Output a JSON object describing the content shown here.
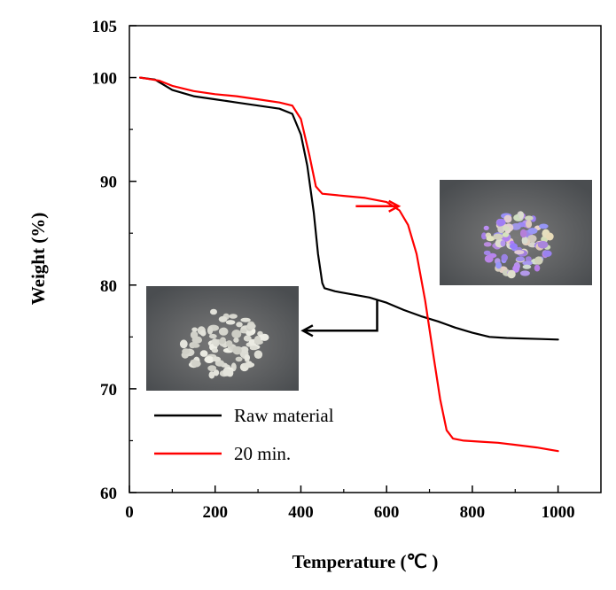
{
  "chart_data": {
    "type": "line",
    "xlabel": "Temperature (℃ )",
    "ylabel": "Weight (%)",
    "xlim": [
      0,
      1100
    ],
    "ylim": [
      60,
      105
    ],
    "xticks": [
      0,
      200,
      400,
      600,
      800,
      1000
    ],
    "yticks": [
      60,
      70,
      80,
      90,
      100,
      105
    ],
    "x_minor_ticks": [
      100,
      300,
      500,
      700,
      900
    ],
    "y_minor_ticks": [
      65,
      75,
      85,
      95
    ],
    "grid": false,
    "legend_position": "bottom-left",
    "series": [
      {
        "name": "Raw material",
        "color": "#000000",
        "points": [
          [
            25,
            100
          ],
          [
            60,
            99.8
          ],
          [
            100,
            98.8
          ],
          [
            150,
            98.2
          ],
          [
            200,
            97.9
          ],
          [
            250,
            97.6
          ],
          [
            300,
            97.3
          ],
          [
            350,
            97.0
          ],
          [
            380,
            96.5
          ],
          [
            400,
            94.5
          ],
          [
            415,
            91.5
          ],
          [
            430,
            87
          ],
          [
            440,
            83
          ],
          [
            450,
            80.2
          ],
          [
            455,
            79.7
          ],
          [
            480,
            79.4
          ],
          [
            520,
            79.1
          ],
          [
            560,
            78.8
          ],
          [
            600,
            78.3
          ],
          [
            640,
            77.6
          ],
          [
            680,
            77.0
          ],
          [
            720,
            76.5
          ],
          [
            760,
            75.9
          ],
          [
            800,
            75.4
          ],
          [
            840,
            75.0
          ],
          [
            880,
            74.9
          ],
          [
            920,
            74.85
          ],
          [
            960,
            74.8
          ],
          [
            1000,
            74.75
          ]
        ]
      },
      {
        "name": "20 min.",
        "color": "#ff0000",
        "points": [
          [
            25,
            100
          ],
          [
            70,
            99.7
          ],
          [
            100,
            99.2
          ],
          [
            150,
            98.7
          ],
          [
            200,
            98.4
          ],
          [
            250,
            98.2
          ],
          [
            300,
            97.9
          ],
          [
            350,
            97.6
          ],
          [
            380,
            97.3
          ],
          [
            400,
            96.0
          ],
          [
            420,
            92.5
          ],
          [
            435,
            89.5
          ],
          [
            450,
            88.8
          ],
          [
            500,
            88.6
          ],
          [
            550,
            88.4
          ],
          [
            600,
            88.0
          ],
          [
            630,
            87.2
          ],
          [
            650,
            85.8
          ],
          [
            670,
            83.0
          ],
          [
            690,
            78.5
          ],
          [
            710,
            73.0
          ],
          [
            725,
            69.0
          ],
          [
            740,
            66.0
          ],
          [
            755,
            65.2
          ],
          [
            780,
            65.0
          ],
          [
            820,
            64.9
          ],
          [
            860,
            64.8
          ],
          [
            900,
            64.6
          ],
          [
            950,
            64.35
          ],
          [
            1000,
            64.0
          ]
        ]
      }
    ],
    "annotations": [
      {
        "type": "arrow",
        "label": "photo-20-min-sample",
        "color": "#ff0000",
        "points": [
          [
            528,
            87.6
          ],
          [
            628,
            87.6
          ]
        ]
      },
      {
        "type": "arrow",
        "label": "photo-raw-material-sample",
        "color": "#000000",
        "points": [
          [
            578,
            78.5
          ],
          [
            578,
            75.6
          ],
          [
            405,
            75.6
          ]
        ]
      }
    ]
  }
}
